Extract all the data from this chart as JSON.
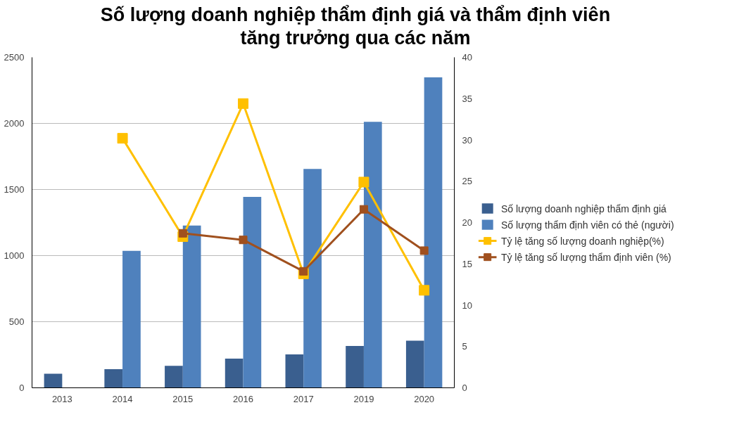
{
  "chart_data": {
    "type": "bar",
    "title": "Số lượng doanh nghiệp thẩm định giá và thẩm định viên\ntăng trưởng qua các năm",
    "categories": [
      "2013",
      "2014",
      "2015",
      "2016",
      "2017",
      "2019",
      "2020"
    ],
    "series": [
      {
        "name": "Số lượng doanh nghiệp thẩm định giá",
        "color": "#3a5f8f",
        "values": [
          106,
          141,
          166,
          221,
          252,
          317,
          357
        ]
      },
      {
        "name": "Số lượng thẩm định viên có thẻ (người)",
        "color": "#4f81bd",
        "values": [
          null,
          1036,
          1227,
          1444,
          1655,
          2012,
          2349
        ]
      },
      {
        "name": "Tỷ lệ tăng số lượng doanh nghiệp(%)",
        "type": "line",
        "axis": "y2",
        "color": "#ffc000",
        "values": [
          null,
          30.2,
          18.3,
          34.4,
          13.8,
          24.9,
          11.8
        ]
      },
      {
        "name": "Tỷ lệ tăng số lượng thẩm định viên (%)",
        "type": "line",
        "axis": "y2",
        "color": "#a0501e",
        "values": [
          null,
          null,
          18.7,
          17.9,
          14.1,
          21.6,
          16.6
        ]
      }
    ],
    "ylim": [
      0,
      2500
    ],
    "yticks": [
      0,
      500,
      1000,
      1500,
      2000,
      2500
    ],
    "y2lim": [
      0,
      40
    ],
    "y2ticks": [
      0,
      5,
      10,
      15,
      20,
      25,
      30,
      35,
      40
    ],
    "grid": "y",
    "legend": "right",
    "marker": "square"
  }
}
